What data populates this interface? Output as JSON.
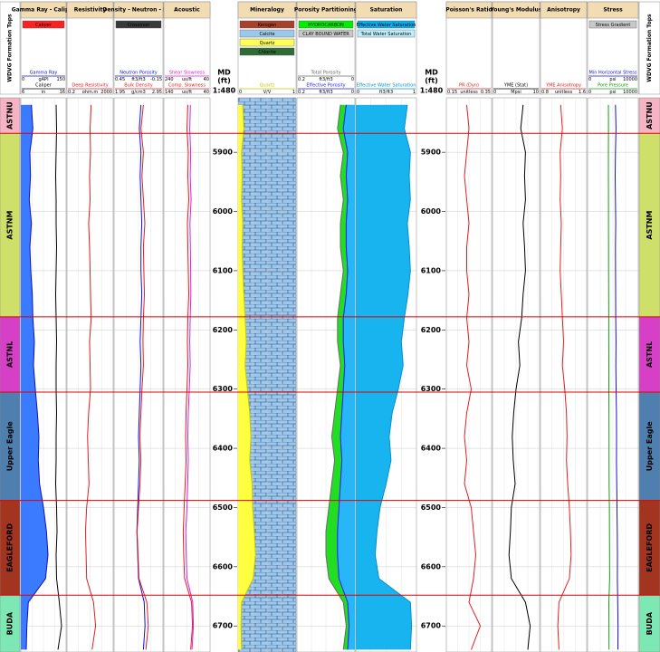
{
  "chart_data": {
    "type": "well-log",
    "tops_title": "WDVG Formation Tops",
    "md_title": "MD",
    "md_unit": "(ft)",
    "md_scale": "1:480",
    "depth": {
      "range": [
        5808,
        6744
      ],
      "ticks": [
        5900,
        6000,
        6100,
        6200,
        6300,
        6400,
        6500,
        6600,
        6700
      ]
    },
    "formations": [
      {
        "name": "ASTNU",
        "top": 5808,
        "color": "#f6b3c3"
      },
      {
        "name": "ASTNM",
        "top": 5868,
        "color": "#cfe06a"
      },
      {
        "name": "ASTNL",
        "top": 6178,
        "color": "#d640c6"
      },
      {
        "name": "Upper Eagle",
        "top": 6305,
        "color": "#4f7fae"
      },
      {
        "name": "EAGLEFORD",
        "top": 6488,
        "color": "#a3341f"
      },
      {
        "name": "BUDA",
        "top": 6648,
        "color": "#7ee8b4"
      }
    ],
    "sample_depths": [
      5820,
      5860,
      5900,
      5940,
      5980,
      6020,
      6060,
      6100,
      6140,
      6180,
      6220,
      6260,
      6300,
      6340,
      6380,
      6420,
      6460,
      6500,
      6540,
      6580,
      6620,
      6660,
      6700,
      6740
    ],
    "tracks": [
      {
        "title": "Gamma Ray - Caliper",
        "legend": [
          {
            "label": "Caliper",
            "color": "#ff2020"
          }
        ],
        "curves": [
          {
            "name": "Gamma Ray",
            "unit": "gAPI",
            "color": "#1010c0",
            "fill": "#3a7bff",
            "fill_to": "left",
            "range": [
              0,
              150
            ],
            "values": [
              35,
              40,
              30,
              32,
              28,
              35,
              30,
              33,
              38,
              40,
              45,
              42,
              48,
              55,
              60,
              58,
              62,
              75,
              85,
              90,
              82,
              25,
              20,
              18
            ]
          },
          {
            "name": "Caliper",
            "unit": "in",
            "color": "#000000",
            "range": [
              6,
              16
            ],
            "values": [
              13.8,
              13.9,
              13.8,
              13.7,
              13.8,
              13.8,
              13.9,
              13.8,
              13.7,
              13.8,
              13.9,
              13.8,
              13.8,
              13.9,
              13.8,
              13.8,
              13.7,
              13.9,
              14,
              13.8,
              13.9,
              14.5,
              15,
              14.2
            ]
          }
        ]
      },
      {
        "title": "Resistivity",
        "legend": [],
        "curves": [
          {
            "name": "Deep Resistivity",
            "unit": "ohm.m",
            "color": "#e02020",
            "log": true,
            "range": [
              0.2,
              2000
            ],
            "values": [
              25,
              20,
              22,
              18,
              20,
              15,
              18,
              20,
              22,
              25,
              18,
              20,
              22,
              15,
              12,
              14,
              16,
              10,
              8,
              9,
              10,
              40,
              60,
              30
            ]
          }
        ]
      },
      {
        "title": "Density - Neutron - PEF",
        "legend": [
          {
            "label": "Crossover",
            "color": "#3a3a3a"
          }
        ],
        "curves": [
          {
            "name": "Neutron Porosity",
            "unit": "ft3/ft3",
            "color": "#1010e0",
            "range": [
              0.45,
              -0.15
            ],
            "values": [
              0.12,
              0.14,
              0.12,
              0.13,
              0.12,
              0.11,
              0.12,
              0.12,
              0.11,
              0.12,
              0.13,
              0.12,
              0.13,
              0.14,
              0.15,
              0.14,
              0.15,
              0.16,
              0.17,
              0.16,
              0.15,
              0.08,
              0.07,
              0.09
            ]
          },
          {
            "name": "Bulk Density",
            "unit": "g/cm3",
            "color": "#e02020",
            "range": [
              1.95,
              2.95
            ],
            "values": [
              2.55,
              2.5,
              2.55,
              2.52,
              2.55,
              2.58,
              2.55,
              2.56,
              2.57,
              2.55,
              2.54,
              2.55,
              2.52,
              2.5,
              2.48,
              2.5,
              2.48,
              2.45,
              2.42,
              2.44,
              2.46,
              2.62,
              2.65,
              2.6
            ]
          }
        ]
      },
      {
        "title": "Acoustic",
        "legend": [],
        "curves": [
          {
            "name": "Shear Slowness",
            "unit": "us/ft",
            "color": "#e020e0",
            "range": [
              240,
              40
            ],
            "values": [
              125,
              128,
              124,
              126,
              122,
              127,
              125,
              124,
              123,
              126,
              128,
              126,
              130,
              134,
              136,
              134,
              137,
              140,
              145,
              143,
              140,
              115,
              112,
              118
            ]
          },
          {
            "name": "Comp. Slowness",
            "unit": "us/ft",
            "color": "#e02020",
            "range": [
              140,
              40
            ],
            "values": [
              88,
              90,
              87,
              88,
              86,
              89,
              88,
              87,
              86,
              88,
              89,
              88,
              90,
              92,
              93,
              92,
              94,
              96,
              98,
              97,
              95,
              80,
              78,
              82
            ]
          }
        ]
      },
      {
        "title": "Mineralogy",
        "legend": [
          {
            "label": "Kerogen",
            "color": "#a8402a"
          },
          {
            "label": "Calcite",
            "color": "#9cc8ec"
          },
          {
            "label": "Quartz",
            "color": "#ffff55"
          },
          {
            "label": "Chlorite",
            "color": "#2f6b35"
          }
        ],
        "curves": [
          {
            "name": "Quartz",
            "unit": "V/V",
            "color": "#c8c800",
            "fill": "#ffff40",
            "fill_to": "left",
            "range": [
              0,
              1
            ],
            "values": [
              0.08,
              0.1,
              0.06,
              0.07,
              0.06,
              0.08,
              0.07,
              0.08,
              0.1,
              0.12,
              0.14,
              0.12,
              0.16,
              0.2,
              0.22,
              0.2,
              0.24,
              0.25,
              0.28,
              0.3,
              0.26,
              0.06,
              0.05,
              0.06
            ]
          }
        ]
      },
      {
        "title": "Porosity Partitioning",
        "legend": [
          {
            "label": "HYDROCARBON",
            "color": "#00ee00"
          },
          {
            "label": "CLAY BOUND WATER",
            "color": "#c8c8c8"
          }
        ],
        "curves": [
          {
            "name": "Total Porosity",
            "unit": "ft3/ft3",
            "color": "#6a6a6a",
            "fill": "#22dd22",
            "fill_to": "right",
            "range": [
              0.2,
              0
            ],
            "values": [
              0.05,
              0.06,
              0.04,
              0.05,
              0.04,
              0.05,
              0.05,
              0.04,
              0.05,
              0.06,
              0.06,
              0.05,
              0.06,
              0.07,
              0.08,
              0.07,
              0.08,
              0.09,
              0.1,
              0.1,
              0.09,
              0.04,
              0.03,
              0.04
            ]
          },
          {
            "name": "Effective Porosity",
            "unit": "ft3/ft3",
            "color": "#1a1aff",
            "fill": "#29b6f6",
            "fill_to": "right",
            "range": [
              0.2,
              0
            ],
            "values": [
              0.03,
              0.04,
              0.025,
              0.03,
              0.025,
              0.03,
              0.03,
              0.025,
              0.03,
              0.04,
              0.04,
              0.035,
              0.04,
              0.045,
              0.05,
              0.045,
              0.05,
              0.055,
              0.06,
              0.06,
              0.055,
              0.025,
              0.02,
              0.025
            ]
          }
        ]
      },
      {
        "title": "Saturation",
        "legend": [
          {
            "label": "Effective Water Saturation",
            "color": "#00b0f0"
          },
          {
            "label": "Total Water Saturation",
            "color": "#bfefff"
          }
        ],
        "curves": [
          {
            "name": "Effective Water Saturation",
            "unit": "ft3/ft3",
            "color": "#0090d0",
            "fill": "#18b4f0",
            "fill_to": "left",
            "range": [
              0,
              1
            ],
            "values": [
              0.85,
              0.8,
              0.9,
              0.88,
              0.9,
              0.85,
              0.88,
              0.9,
              0.86,
              0.8,
              0.75,
              0.78,
              0.7,
              0.6,
              0.55,
              0.58,
              0.5,
              0.4,
              0.35,
              0.32,
              0.38,
              0.9,
              0.92,
              0.9
            ]
          }
        ]
      },
      {
        "title": "Poisson's Ratio",
        "legend": [],
        "curves": [
          {
            "name": "PR (Dyn)",
            "unit": "unitless",
            "color": "#e02020",
            "range": [
              0.15,
              0.35
            ],
            "values": [
              0.24,
              0.25,
              0.24,
              0.23,
              0.24,
              0.25,
              0.24,
              0.24,
              0.25,
              0.24,
              0.25,
              0.24,
              0.26,
              0.24,
              0.23,
              0.24,
              0.23,
              0.26,
              0.27,
              0.28,
              0.27,
              0.25,
              0.3,
              0.26
            ]
          }
        ]
      },
      {
        "title": "Young's Modulus",
        "legend": [],
        "curves": [
          {
            "name": "YME (Stat)",
            "unit": "Mpsi",
            "color": "#000000",
            "range": [
              0,
              10
            ],
            "values": [
              6.5,
              6,
              7,
              6.8,
              7,
              6.5,
              6.8,
              7,
              6.5,
              6.2,
              5.5,
              5.8,
              5,
              4.5,
              4.2,
              4.4,
              4.8,
              4,
              3.8,
              3.5,
              4,
              7,
              8,
              7.5
            ]
          }
        ]
      },
      {
        "title": "Anisotropy",
        "legend": [],
        "curves": [
          {
            "name": "YME Anisotropy",
            "unit": "unitless",
            "color": "#e02020",
            "range": [
              0.8,
              1.6
            ],
            "values": [
              1.15,
              1.18,
              1.14,
              1.15,
              1.14,
              1.16,
              1.15,
              1.14,
              1.16,
              1.18,
              1.2,
              1.18,
              1.22,
              1.25,
              1.26,
              1.25,
              1.27,
              1.3,
              1.32,
              1.33,
              1.3,
              1.12,
              1.1,
              1.12
            ]
          }
        ]
      },
      {
        "title": "Stress",
        "legend": [
          {
            "label": "Stress Gradient",
            "color": "#c8c8c8"
          }
        ],
        "curves": [
          {
            "name": "Min Horizontal Stress",
            "unit": "psi",
            "color": "#1010e0",
            "range": [
              0,
              10000
            ],
            "values": [
              5500,
              5600,
              5500,
              5450,
              5500,
              5550,
              5500,
              5520,
              5540,
              5560,
              5600,
              5580,
              5620,
              5700,
              5720,
              5700,
              5750,
              5800,
              5850,
              5900,
              5880,
              5950,
              6000,
              5980
            ]
          },
          {
            "name": "Pore Pressure",
            "unit": "psi",
            "color": "#10a010",
            "range": [
              0,
              10000
            ],
            "values": [
              4100,
              4120,
              4100,
              4110,
              4120,
              4130,
              4140,
              4150,
              4160,
              4170,
              4180,
              4190,
              4200,
              4210,
              4230,
              4240,
              4250,
              4300,
              4320,
              4340,
              4350,
              4200,
              4220,
              4240
            ]
          }
        ]
      }
    ]
  }
}
